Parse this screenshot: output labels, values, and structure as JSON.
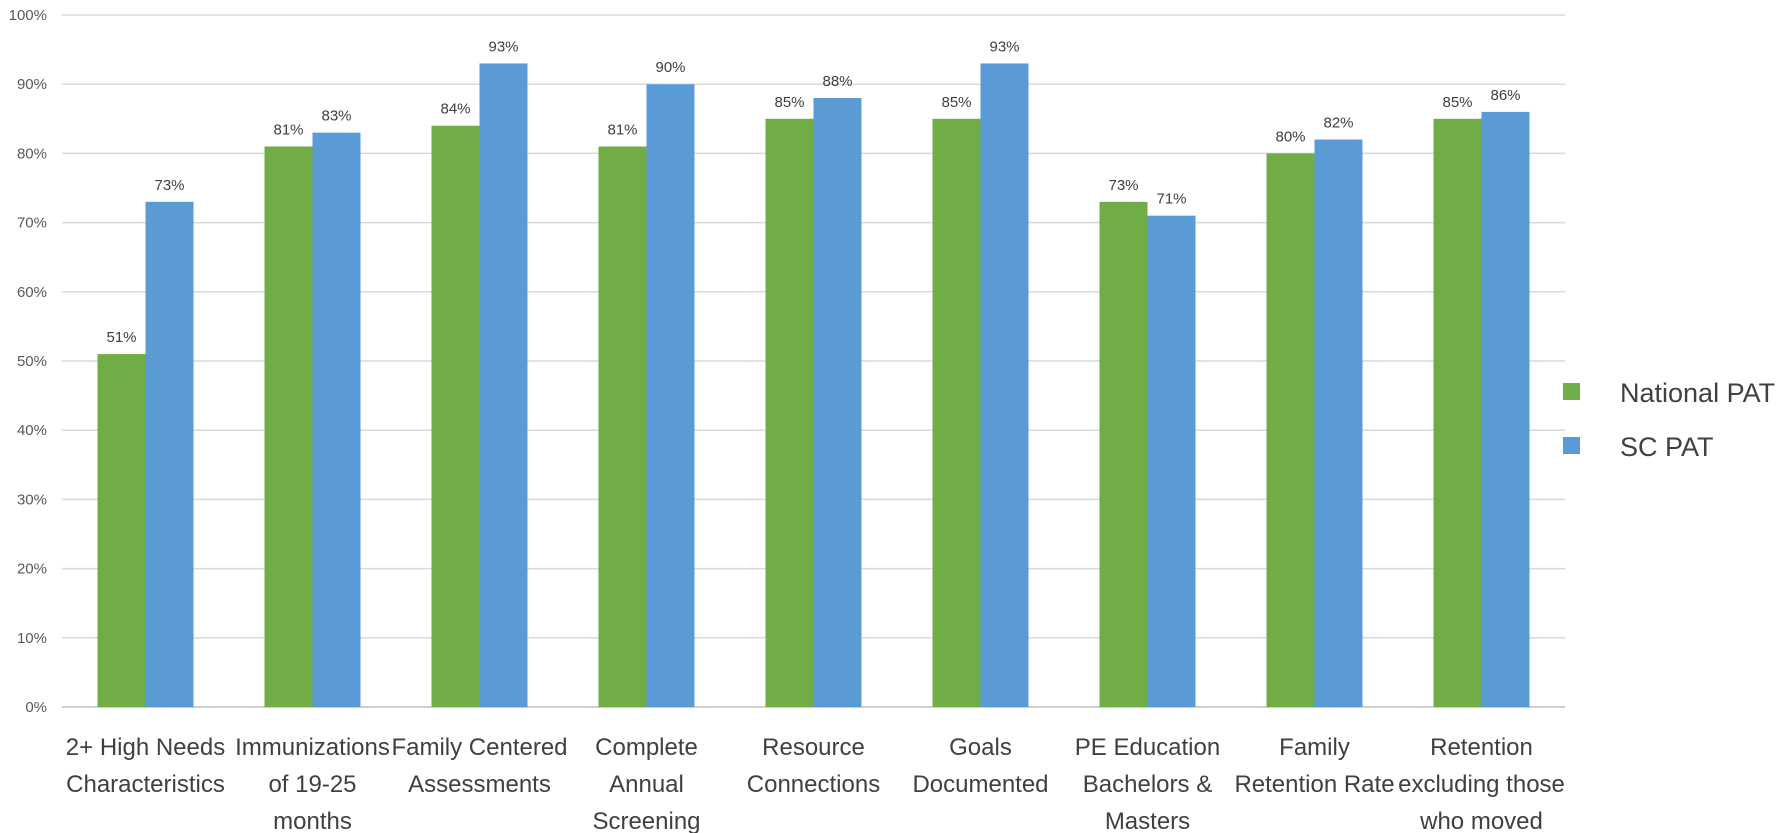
{
  "chart_data": {
    "type": "bar",
    "title": "",
    "xlabel": "",
    "ylabel": "",
    "ylim": [
      0,
      100
    ],
    "yticks": [
      "0%",
      "10%",
      "20%",
      "30%",
      "40%",
      "50%",
      "60%",
      "70%",
      "80%",
      "90%",
      "100%"
    ],
    "grid": true,
    "legend_position": "right",
    "categories": [
      [
        "2+ High Needs",
        "Characteristics"
      ],
      [
        "Immunizations",
        "of 19-25",
        "months"
      ],
      [
        "Family Centered",
        "Assessments"
      ],
      [
        "Complete",
        "Annual",
        "Screening"
      ],
      [
        "Resource",
        "Connections"
      ],
      [
        "Goals",
        "Documented"
      ],
      [
        "PE Education",
        "Bachelors &",
        "Masters"
      ],
      [
        "Family",
        "Retention Rate"
      ],
      [
        "Retention",
        "excluding those",
        "who moved"
      ]
    ],
    "series": [
      {
        "name": "National PAT",
        "color": "#70ad47",
        "values": [
          51,
          81,
          84,
          81,
          85,
          85,
          73,
          80,
          85
        ],
        "labels": [
          "51%",
          "81%",
          "84%",
          "81%",
          "85%",
          "85%",
          "73%",
          "80%",
          "85%"
        ]
      },
      {
        "name": "SC PAT",
        "color": "#5b9bd5",
        "values": [
          73,
          83,
          93,
          90,
          88,
          93,
          71,
          82,
          86
        ],
        "labels": [
          "73%",
          "83%",
          "93%",
          "90%",
          "88%",
          "93%",
          "71%",
          "82%",
          "86%"
        ]
      }
    ]
  }
}
